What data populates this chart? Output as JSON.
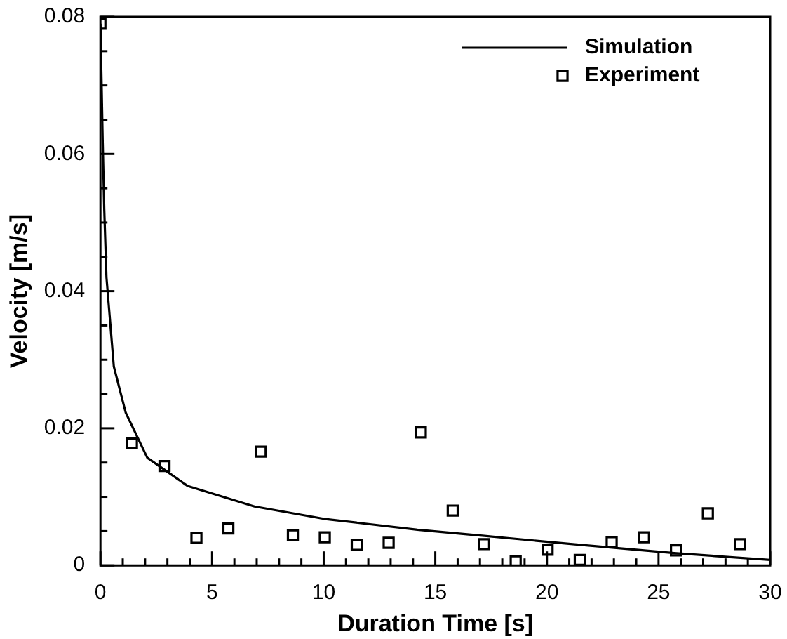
{
  "chart_data": {
    "type": "scatter",
    "xlabel": "Duration Time [s]",
    "ylabel": "Velocity [m/s]",
    "xlim": [
      0,
      30
    ],
    "ylim": [
      0,
      0.08
    ],
    "xticks": [
      0,
      {
        "value": 1,
        "label": null
      },
      {
        "value": 2,
        "label": null
      },
      {
        "value": 3,
        "label": null
      },
      {
        "value": 4,
        "label": null
      },
      5,
      {
        "value": 6,
        "label": null
      },
      {
        "value": 7,
        "label": null
      },
      {
        "value": 8,
        "label": null
      },
      {
        "value": 9,
        "label": null
      },
      10,
      {
        "value": 11,
        "label": null
      },
      {
        "value": 12,
        "label": null
      },
      {
        "value": 13,
        "label": null
      },
      {
        "value": 14,
        "label": null
      },
      15,
      {
        "value": 16,
        "label": null
      },
      {
        "value": 17,
        "label": null
      },
      {
        "value": 18,
        "label": null
      },
      {
        "value": 19,
        "label": null
      },
      20,
      {
        "value": 21,
        "label": null
      },
      {
        "value": 22,
        "label": null
      },
      {
        "value": 23,
        "label": null
      },
      {
        "value": 24,
        "label": null
      },
      25,
      {
        "value": 26,
        "label": null
      },
      {
        "value": 27,
        "label": null
      },
      {
        "value": 28,
        "label": null
      },
      {
        "value": 29,
        "label": null
      },
      30
    ],
    "yticks": [
      0,
      {
        "value": 0.005,
        "label": null
      },
      {
        "value": 0.01,
        "label": null
      },
      {
        "value": 0.015,
        "label": null
      },
      0.02,
      {
        "value": 0.025,
        "label": null
      },
      {
        "value": 0.03,
        "label": null
      },
      {
        "value": 0.035,
        "label": null
      },
      0.04,
      {
        "value": 0.045,
        "label": null
      },
      {
        "value": 0.05,
        "label": null
      },
      {
        "value": 0.055,
        "label": null
      },
      0.06,
      {
        "value": 0.065,
        "label": null
      },
      {
        "value": 0.07,
        "label": null
      },
      {
        "value": 0.075,
        "label": null
      },
      0.08
    ],
    "grid": false,
    "legend": "top right",
    "series": [
      {
        "name": "Simulation",
        "type": "line",
        "color": "#000000",
        "marker": "none",
        "line_style": "solid",
        "x": [
          0,
          0.1,
          0.17,
          0.27,
          0.6,
          1.13,
          2.1,
          3.9,
          6.9,
          10,
          14.2,
          17.2,
          21.5,
          25.7,
          30
        ],
        "values": [
          0.079,
          0.062,
          0.052,
          0.042,
          0.029,
          0.0223,
          0.0157,
          0.0116,
          0.0086,
          0.0068,
          0.0052,
          0.0043,
          0.003,
          0.0018,
          0.0008
        ]
      },
      {
        "name": "Experiment",
        "color": "#000000",
        "marker": "square",
        "x": [
          0,
          1.41,
          2.87,
          4.3,
          5.73,
          7.18,
          8.62,
          10.05,
          11.48,
          12.91,
          14.35,
          15.78,
          17.19,
          18.6,
          20.03,
          21.47,
          22.9,
          24.35,
          25.78,
          27.21,
          28.65
        ],
        "values": [
          0.079,
          0.0178,
          0.0145,
          0.004,
          0.0054,
          0.0166,
          0.0044,
          0.0041,
          0.003,
          0.0033,
          0.0194,
          0.008,
          0.0031,
          0.0006,
          0.0023,
          0.0008,
          0.0034,
          0.0041,
          0.0022,
          0.0076,
          0.0031
        ]
      }
    ]
  }
}
